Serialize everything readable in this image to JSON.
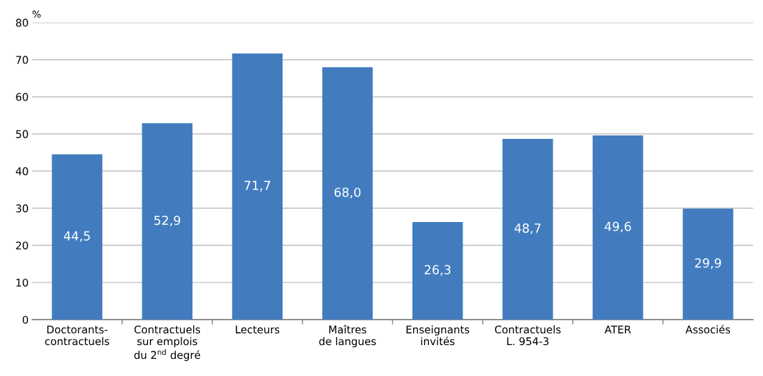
{
  "chart_data": {
    "type": "bar",
    "ylabel": "%",
    "categories": [
      "Doctorants-\ncontractuels",
      "Contractuels\nsur emplois\ndu 2$^{nd}$ degré",
      "Lecteurs",
      "Maîtres\nde langues",
      "Enseignants\ninvités",
      "Contractuels\nL. 954-3",
      "ATER",
      "Associés"
    ],
    "values": [
      44.5,
      52.9,
      71.7,
      68.0,
      26.3,
      48.7,
      49.6,
      29.9
    ],
    "value_labels": [
      "44,5",
      "52,9",
      "71,7",
      "68,0",
      "26,3",
      "48,7",
      "49,6",
      "29,9"
    ],
    "color": "#427cbf",
    "ylim": [
      0,
      80
    ],
    "yticks": [
      0,
      10,
      20,
      30,
      40,
      50,
      60,
      70,
      80
    ],
    "grid": "y",
    "legend": false
  }
}
